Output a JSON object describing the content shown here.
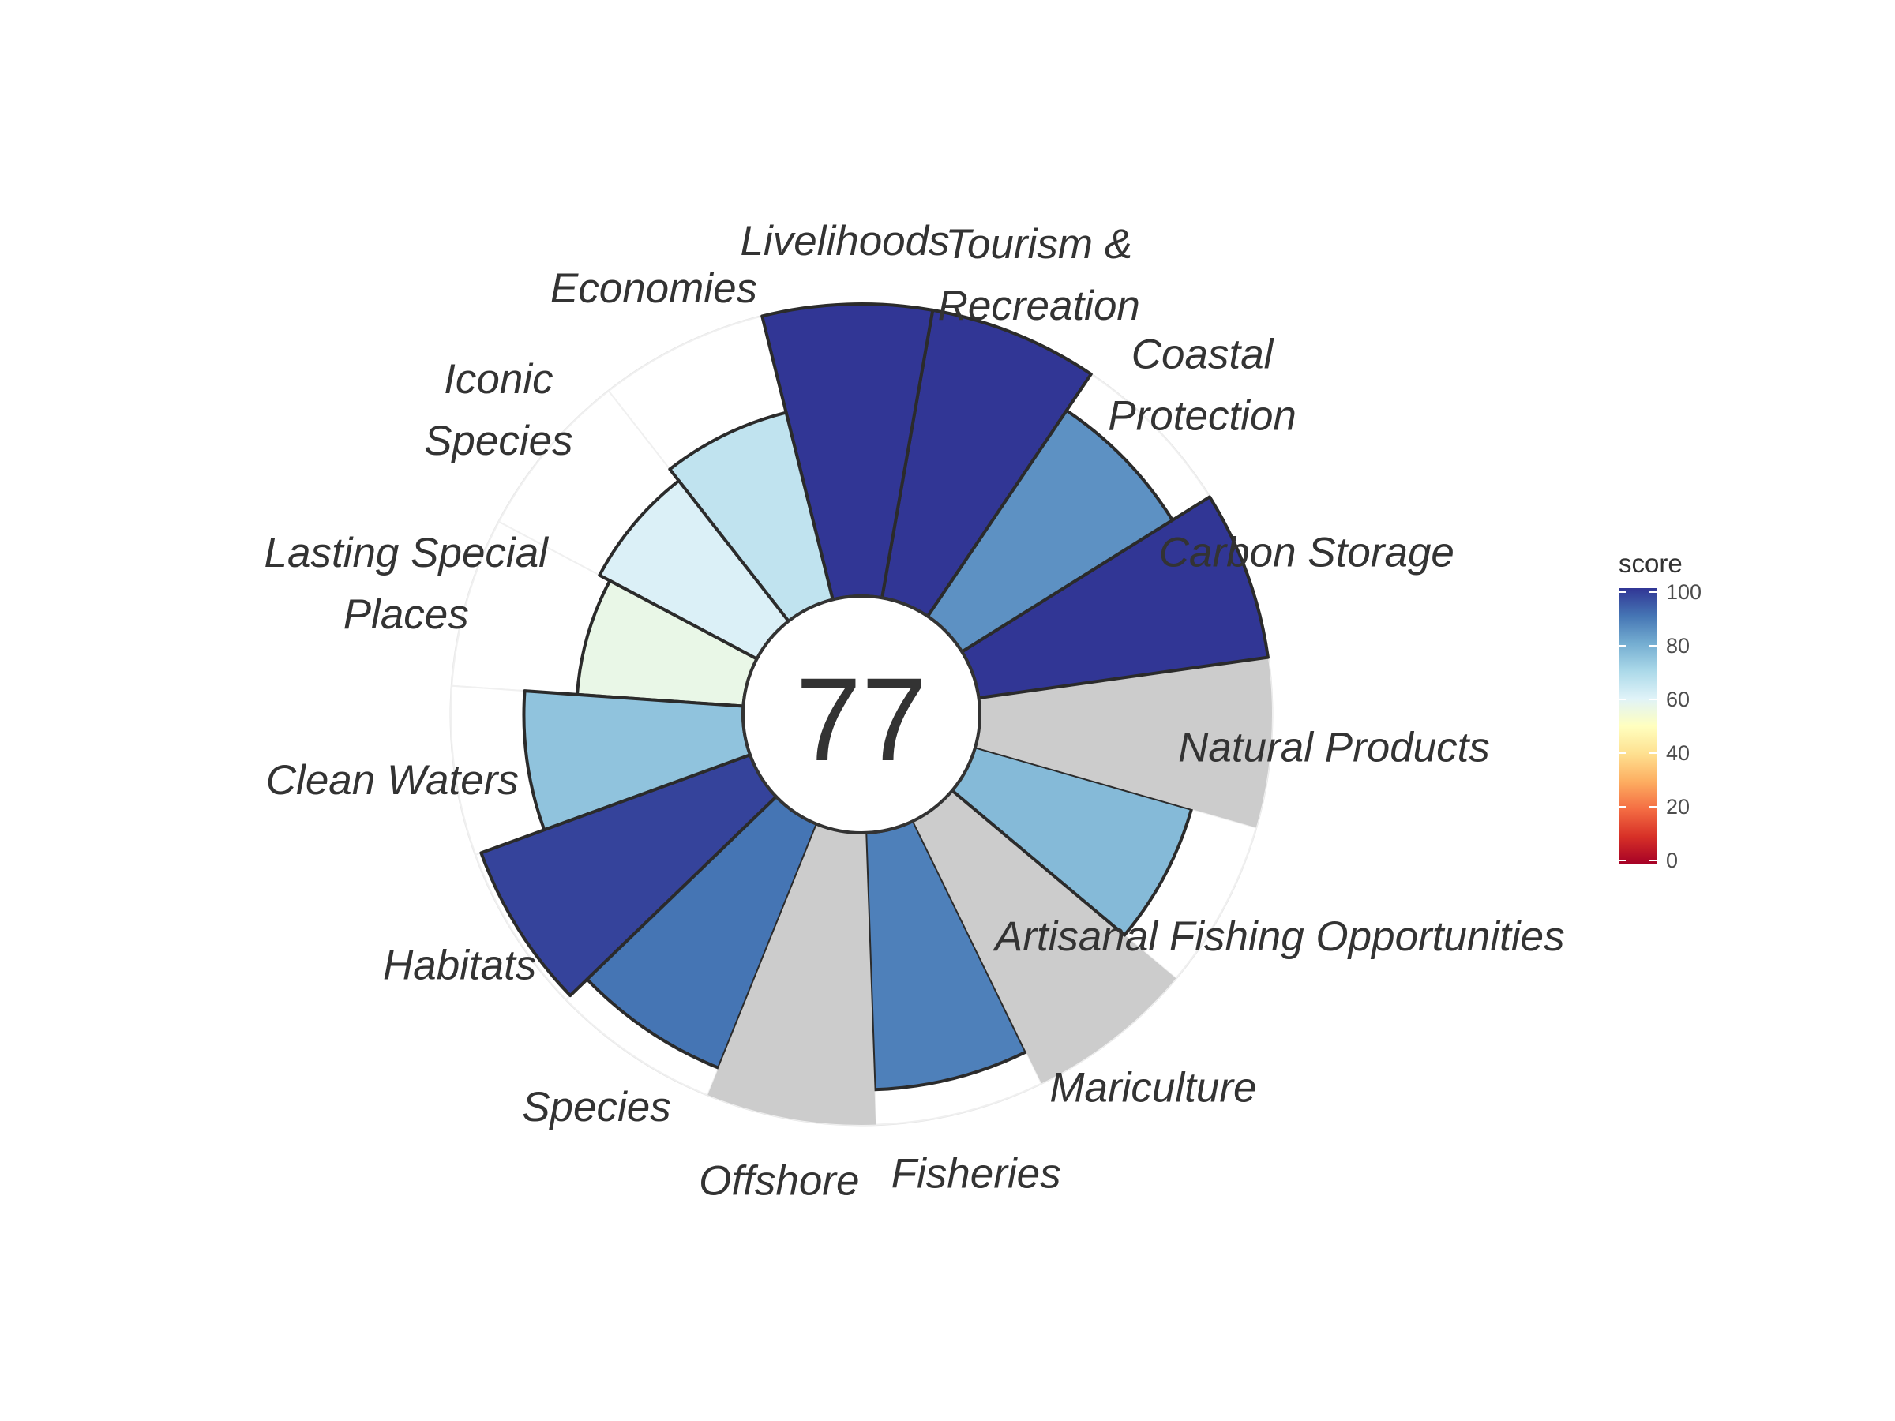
{
  "chart_data": {
    "type": "polar-bar",
    "center_label": "77",
    "ylim": [
      0,
      100
    ],
    "missing_color": "#cccccc",
    "segments": [
      {
        "label": [
          "Fisheries"
        ],
        "value": 88
      },
      {
        "label": [
          "Mariculture"
        ],
        "value": null
      },
      {
        "label": [
          "Artisanal Fishing Opportunities"
        ],
        "value": 77
      },
      {
        "label": [
          "Natural Products"
        ],
        "value": null
      },
      {
        "label": [
          "Carbon Storage"
        ],
        "value": 100
      },
      {
        "label": [
          "Coastal",
          "Protection"
        ],
        "value": 85
      },
      {
        "label": [
          "Tourism &",
          "Recreation"
        ],
        "value": 100
      },
      {
        "label": [
          "Livelihoods"
        ],
        "value": 100
      },
      {
        "label": [
          "Economies"
        ],
        "value": 66
      },
      {
        "label": [
          "Iconic",
          "Species"
        ],
        "value": 61
      },
      {
        "label": [
          "Lasting Special",
          "Places"
        ],
        "value": 57
      },
      {
        "label": [
          "Clean Waters"
        ],
        "value": 75
      },
      {
        "label": [
          "Habitats"
        ],
        "value": 98
      },
      {
        "label": [
          "Species"
        ],
        "value": 90
      },
      {
        "label": [
          "Offshore"
        ],
        "value": null
      }
    ],
    "legend": {
      "title": "score",
      "ticks": [
        "100",
        "80",
        "60",
        "40",
        "20",
        "0"
      ],
      "colors": [
        "#a50026",
        "#d73027",
        "#f46d43",
        "#fdae61",
        "#fee090",
        "#ffffbf",
        "#e0f3f8",
        "#abd9e9",
        "#74add1",
        "#4575b4",
        "#313695"
      ]
    }
  }
}
